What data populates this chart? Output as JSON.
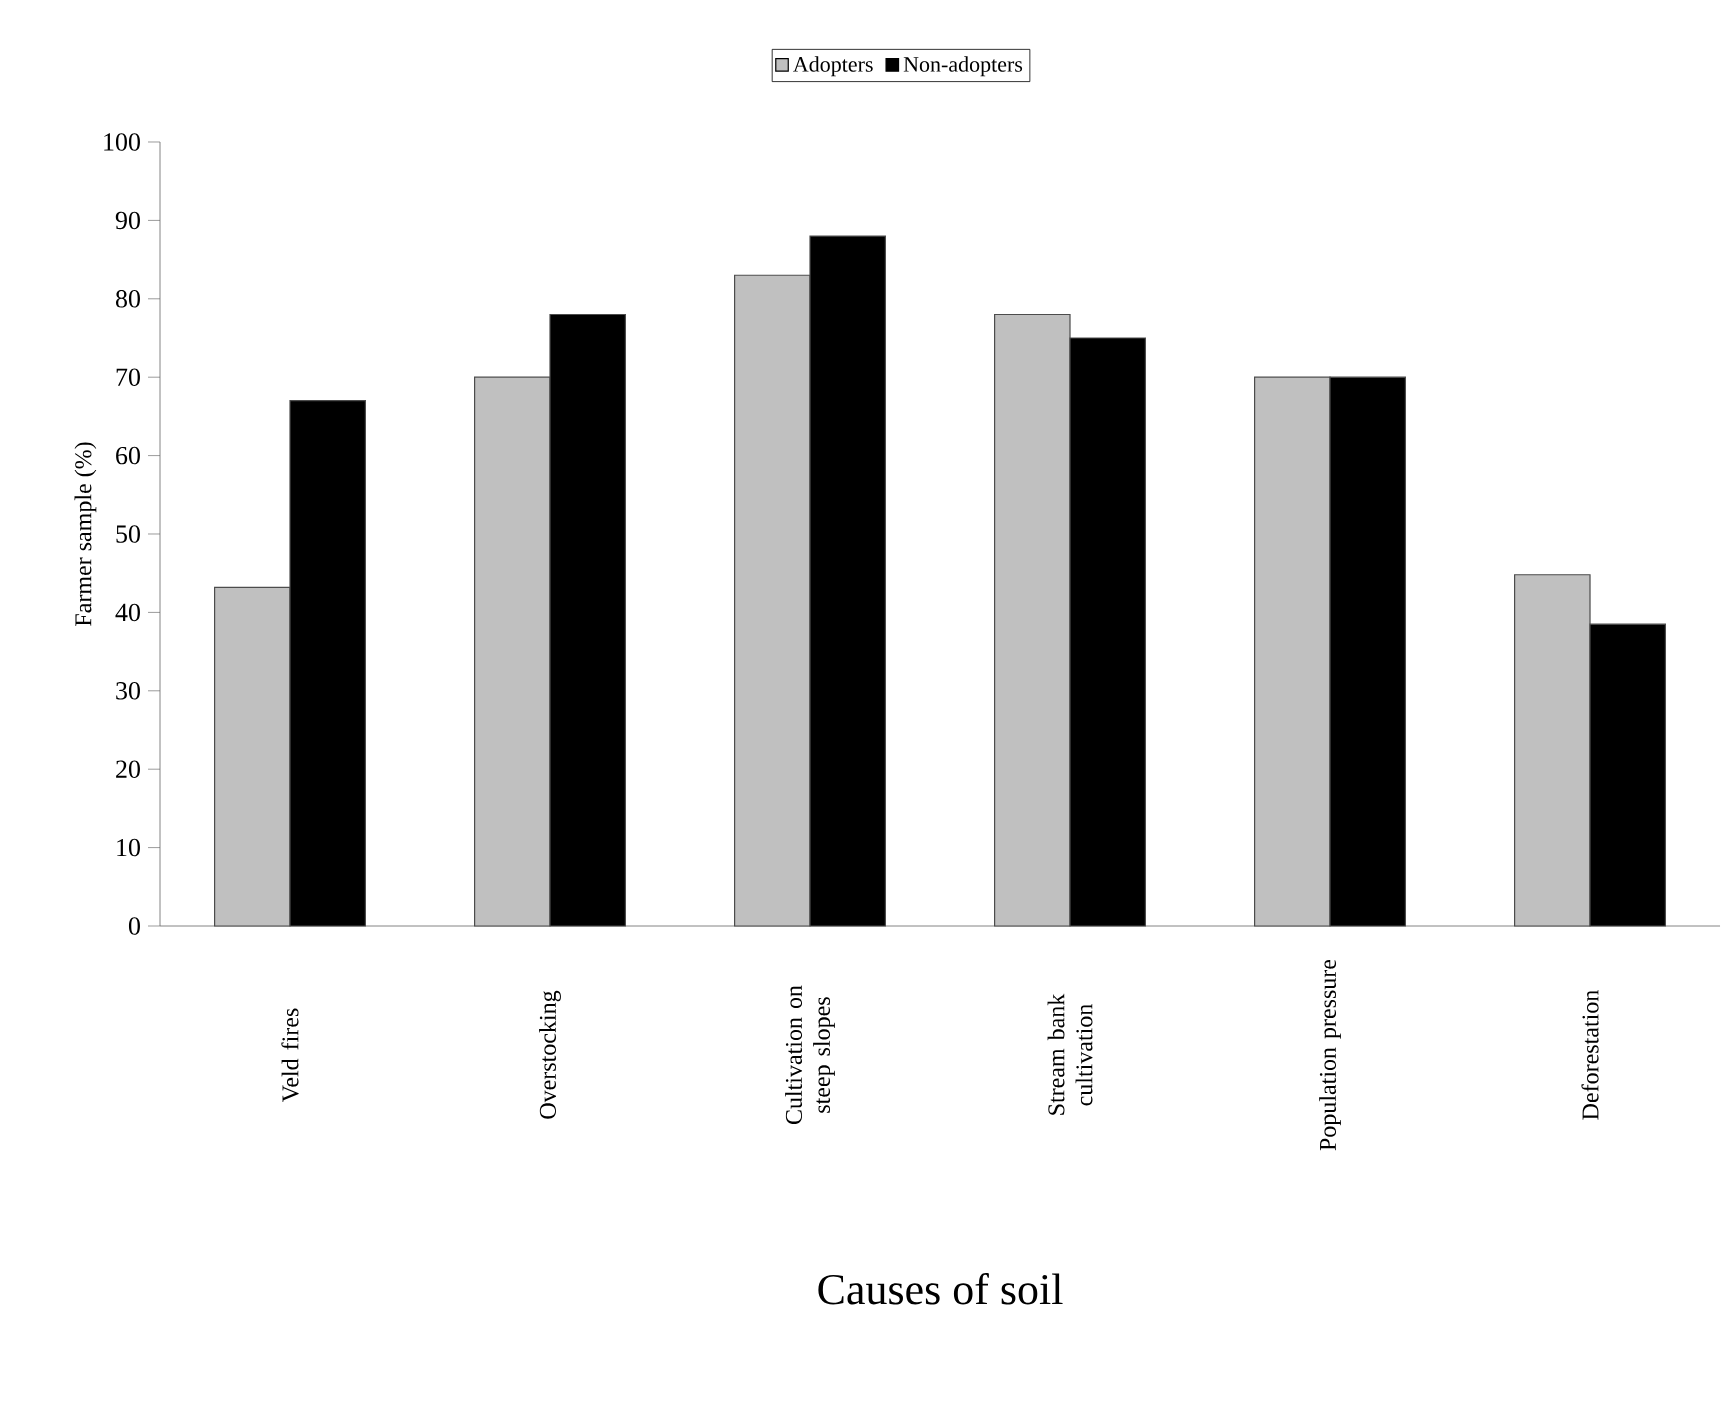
{
  "chart_data": {
    "type": "bar",
    "xlabel": "Causes of soil",
    "ylabel": "Farmer sample (%)",
    "categories": [
      "Veld fires",
      "Overstocking",
      "Cultivation on steep slopes",
      "Stream bank cultivation",
      "Population pressure",
      "Deforestation"
    ],
    "series": [
      {
        "name": "Adopters",
        "color": "#c0c0c0",
        "values": [
          43.2,
          70,
          83,
          78,
          70,
          44.8
        ]
      },
      {
        "name": "Non-adopters",
        "color": "#000000",
        "values": [
          67,
          78,
          88,
          75,
          70,
          38.5
        ]
      }
    ],
    "ylim": [
      0,
      100
    ],
    "yticks": [
      0,
      10,
      20,
      30,
      40,
      50,
      60,
      70,
      80,
      90,
      100
    ],
    "legend": "top"
  }
}
